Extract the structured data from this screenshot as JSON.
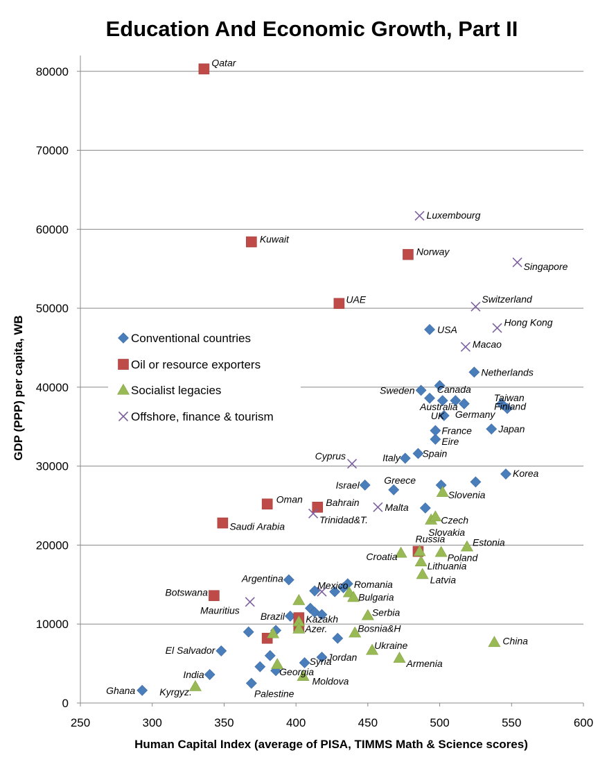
{
  "chart_data": {
    "type": "scatter",
    "title": "Education And Economic Growth, Part II",
    "xlabel": "Human Capital Index (average of PISA, TIMMS Math & Science scores)",
    "ylabel": "GDP (PPP) per capita, WB",
    "xlim": [
      250,
      600
    ],
    "ylim": [
      0,
      82000
    ],
    "x_ticks": [
      250,
      300,
      350,
      400,
      450,
      500,
      550,
      600
    ],
    "y_ticks": [
      0,
      10000,
      20000,
      30000,
      40000,
      50000,
      60000,
      70000,
      80000
    ],
    "x_tick_labels": [
      "250",
      "300",
      "350",
      "400",
      "450",
      "500",
      "550",
      "600"
    ],
    "y_tick_labels": [
      "0",
      "10000",
      "20000",
      "30000",
      "40000",
      "50000",
      "60000",
      "70000",
      "80000"
    ],
    "grid": "horizontal",
    "legend_position": "left-middle",
    "series": [
      {
        "name": "Conventional countries",
        "marker": "diamond",
        "color": "#4A7EBB",
        "points": [
          {
            "x": 293,
            "y": 1600,
            "label": "Ghana"
          },
          {
            "x": 340,
            "y": 3600,
            "label": "India"
          },
          {
            "x": 348,
            "y": 6600,
            "label": "El Salvador"
          },
          {
            "x": 369,
            "y": 2500,
            "label": "Palestine"
          },
          {
            "x": 375,
            "y": 4600,
            "label": ""
          },
          {
            "x": 382,
            "y": 6000,
            "label": ""
          },
          {
            "x": 367,
            "y": 9000,
            "label": ""
          },
          {
            "x": 386,
            "y": 9200,
            "label": ""
          },
          {
            "x": 386,
            "y": 4100,
            "label": ""
          },
          {
            "x": 395,
            "y": 15600,
            "label": "Argentina"
          },
          {
            "x": 396,
            "y": 11000,
            "label": "Brazil"
          },
          {
            "x": 406,
            "y": 5100,
            "label": "Syria"
          },
          {
            "x": 410,
            "y": 12000,
            "label": ""
          },
          {
            "x": 413,
            "y": 11500,
            "label": ""
          },
          {
            "x": 413,
            "y": 14200,
            "label": "Mexico"
          },
          {
            "x": 418,
            "y": 11200,
            "label": ""
          },
          {
            "x": 418,
            "y": 5800,
            "label": "Jordan"
          },
          {
            "x": 427,
            "y": 14100,
            "label": ""
          },
          {
            "x": 429,
            "y": 8200,
            "label": ""
          },
          {
            "x": 433,
            "y": 14600,
            "label": ""
          },
          {
            "x": 436,
            "y": 15100,
            "label": "Romania"
          },
          {
            "x": 448,
            "y": 27600,
            "label": "Israel"
          },
          {
            "x": 468,
            "y": 27000,
            "label": "Greece"
          },
          {
            "x": 476,
            "y": 31000,
            "label": "Italy"
          },
          {
            "x": 485,
            "y": 31600,
            "label": "Spain"
          },
          {
            "x": 487,
            "y": 39600,
            "label": "Sweden"
          },
          {
            "x": 490,
            "y": 24700,
            "label": ""
          },
          {
            "x": 493,
            "y": 38600,
            "label": "Australia"
          },
          {
            "x": 493,
            "y": 47300,
            "label": "USA"
          },
          {
            "x": 497,
            "y": 33400,
            "label": "Eire"
          },
          {
            "x": 497,
            "y": 34500,
            "label": "France"
          },
          {
            "x": 500,
            "y": 40200,
            "label": ""
          },
          {
            "x": 502,
            "y": 38300,
            "label": "Canada"
          },
          {
            "x": 501,
            "y": 27600,
            "label": ""
          },
          {
            "x": 503,
            "y": 36400,
            "label": "UK"
          },
          {
            "x": 511,
            "y": 38300,
            "label": ""
          },
          {
            "x": 517,
            "y": 37900,
            "label": "Germany"
          },
          {
            "x": 524,
            "y": 41900,
            "label": "Netherlands"
          },
          {
            "x": 525,
            "y": 28000,
            "label": ""
          },
          {
            "x": 536,
            "y": 34700,
            "label": "Japan"
          },
          {
            "x": 543,
            "y": 37900,
            "label": "Taiwan"
          },
          {
            "x": 547,
            "y": 37300,
            "label": "Finland"
          },
          {
            "x": 546,
            "y": 29000,
            "label": "Korea"
          }
        ]
      },
      {
        "name": "Oil or resource exporters",
        "marker": "square",
        "color": "#BE4B48",
        "points": [
          {
            "x": 336,
            "y": 80300,
            "label": "Qatar"
          },
          {
            "x": 369,
            "y": 58400,
            "label": "Kuwait"
          },
          {
            "x": 430,
            "y": 50600,
            "label": "UAE"
          },
          {
            "x": 478,
            "y": 56800,
            "label": "Norway"
          },
          {
            "x": 380,
            "y": 25200,
            "label": "Oman"
          },
          {
            "x": 415,
            "y": 24800,
            "label": "Bahrain"
          },
          {
            "x": 349,
            "y": 22800,
            "label": "Saudi Arabia"
          },
          {
            "x": 343,
            "y": 13600,
            "label": "Botswana"
          },
          {
            "x": 380,
            "y": 8200,
            "label": ""
          },
          {
            "x": 402,
            "y": 10800,
            "label": "Kazakh"
          },
          {
            "x": 402,
            "y": 9600,
            "label": ""
          },
          {
            "x": 485,
            "y": 19200,
            "label": "Russia"
          }
        ]
      },
      {
        "name": "Socialist legacies",
        "marker": "triangle",
        "color": "#98B954",
        "points": [
          {
            "x": 330,
            "y": 2100,
            "label": "Kyrgyz."
          },
          {
            "x": 384,
            "y": 8800,
            "label": ""
          },
          {
            "x": 387,
            "y": 4900,
            "label": "Georgia"
          },
          {
            "x": 402,
            "y": 13000,
            "label": ""
          },
          {
            "x": 402,
            "y": 10300,
            "label": ""
          },
          {
            "x": 402,
            "y": 9400,
            "label": "Azer."
          },
          {
            "x": 405,
            "y": 3400,
            "label": "Moldova"
          },
          {
            "x": 437,
            "y": 14000,
            "label": ""
          },
          {
            "x": 440,
            "y": 13400,
            "label": "Bulgaria"
          },
          {
            "x": 441,
            "y": 8900,
            "label": "Bosnia&H"
          },
          {
            "x": 450,
            "y": 11100,
            "label": "Serbia"
          },
          {
            "x": 453,
            "y": 6700,
            "label": "Ukraine"
          },
          {
            "x": 472,
            "y": 5700,
            "label": "Armenia"
          },
          {
            "x": 473,
            "y": 19000,
            "label": "Croatia"
          },
          {
            "x": 486,
            "y": 19200,
            "label": ""
          },
          {
            "x": 487,
            "y": 17900,
            "label": "Lithuania"
          },
          {
            "x": 488,
            "y": 16300,
            "label": "Latvia"
          },
          {
            "x": 494,
            "y": 23200,
            "label": "Slovakia"
          },
          {
            "x": 497,
            "y": 23600,
            "label": "Czech"
          },
          {
            "x": 501,
            "y": 19100,
            "label": "Poland"
          },
          {
            "x": 502,
            "y": 26700,
            "label": "Slovenia"
          },
          {
            "x": 519,
            "y": 19800,
            "label": "Estonia"
          },
          {
            "x": 538,
            "y": 7700,
            "label": "China"
          }
        ]
      },
      {
        "name": "Offshore, finance & tourism",
        "marker": "x",
        "color": "#7D60A0",
        "points": [
          {
            "x": 486,
            "y": 61700,
            "label": "Luxembourg"
          },
          {
            "x": 554,
            "y": 55800,
            "label": "Singapore"
          },
          {
            "x": 525,
            "y": 50200,
            "label": "Switzerland"
          },
          {
            "x": 540,
            "y": 47500,
            "label": "Hong Kong"
          },
          {
            "x": 518,
            "y": 45100,
            "label": "Macao"
          },
          {
            "x": 439,
            "y": 30300,
            "label": "Cyprus"
          },
          {
            "x": 457,
            "y": 24800,
            "label": "Malta"
          },
          {
            "x": 412,
            "y": 24000,
            "label": "Trinidad&T."
          },
          {
            "x": 368,
            "y": 12800,
            "label": "Mauritius"
          },
          {
            "x": 418,
            "y": 14100,
            "label": ""
          }
        ]
      }
    ]
  }
}
